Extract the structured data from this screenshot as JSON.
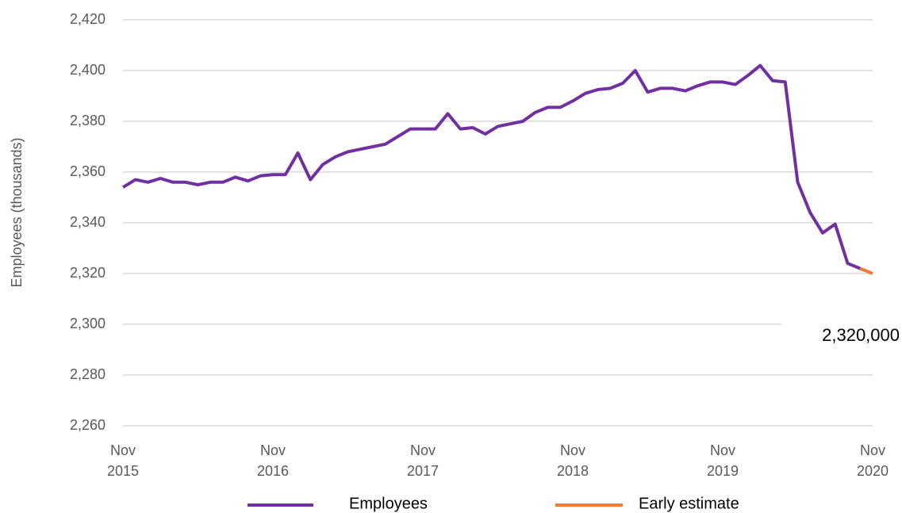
{
  "chart_data": {
    "type": "line",
    "ylabel": "Employees (thousands)",
    "categories": [
      "Nov 2015",
      null,
      null,
      null,
      null,
      null,
      null,
      null,
      null,
      null,
      null,
      null,
      "Nov 2016",
      null,
      null,
      null,
      null,
      null,
      null,
      null,
      null,
      null,
      null,
      null,
      "Nov 2017",
      null,
      null,
      null,
      null,
      null,
      null,
      null,
      null,
      null,
      null,
      null,
      "Nov 2018",
      null,
      null,
      null,
      null,
      null,
      null,
      null,
      null,
      null,
      null,
      null,
      "Nov 2019",
      null,
      null,
      null,
      null,
      null,
      null,
      null,
      null,
      null,
      null,
      null,
      "Nov 2020"
    ],
    "series": [
      {
        "name": "Employees",
        "color": "#7030a0",
        "values": [
          2354,
          2357,
          2356,
          2357.5,
          2356,
          2356,
          2355,
          2356,
          2356,
          2358,
          2356.5,
          2358.5,
          2359,
          2359,
          2367.5,
          2357,
          2363,
          2366,
          2368,
          2369,
          2370,
          2371,
          2374,
          2377,
          2377,
          2377,
          2383,
          2377,
          2377.5,
          2375,
          2378,
          2379,
          2380,
          2383.5,
          2385.5,
          2385.5,
          2388,
          2391,
          2392.5,
          2393,
          2395,
          2400,
          2391.5,
          2393,
          2393,
          2392,
          2394,
          2395.5,
          2395.5,
          2394.5,
          2398,
          2402,
          2396,
          2395.5,
          2356,
          2344,
          2336,
          2339.5,
          2324,
          2322,
          null
        ]
      },
      {
        "name": "Early estimate",
        "color": "#ed7d31",
        "values": [
          null,
          null,
          null,
          null,
          null,
          null,
          null,
          null,
          null,
          null,
          null,
          null,
          null,
          null,
          null,
          null,
          null,
          null,
          null,
          null,
          null,
          null,
          null,
          null,
          null,
          null,
          null,
          null,
          null,
          null,
          null,
          null,
          null,
          null,
          null,
          null,
          null,
          null,
          null,
          null,
          null,
          null,
          null,
          null,
          null,
          null,
          null,
          null,
          null,
          null,
          null,
          null,
          null,
          null,
          null,
          null,
          null,
          null,
          null,
          2322,
          2320
        ],
        "value_labels": [
          null,
          null,
          null,
          null,
          null,
          null,
          null,
          null,
          null,
          null,
          null,
          null,
          null,
          null,
          null,
          null,
          null,
          null,
          null,
          null,
          null,
          null,
          null,
          null,
          null,
          null,
          null,
          null,
          null,
          null,
          null,
          null,
          null,
          null,
          null,
          null,
          null,
          null,
          null,
          null,
          null,
          null,
          null,
          null,
          null,
          null,
          null,
          null,
          null,
          null,
          null,
          null,
          null,
          null,
          null,
          null,
          null,
          null,
          null,
          null,
          "2,320,000"
        ]
      }
    ],
    "ylim": [
      2260,
      2420
    ],
    "yticks": [
      {
        "value": 2260,
        "label": "2,260"
      },
      {
        "value": 2280,
        "label": "2,280"
      },
      {
        "value": 2300,
        "label": "2,300"
      },
      {
        "value": 2320,
        "label": "2,320"
      },
      {
        "value": 2340,
        "label": "2,340"
      },
      {
        "value": 2360,
        "label": "2,360"
      },
      {
        "value": 2380,
        "label": "2,380"
      },
      {
        "value": 2400,
        "label": "2,400"
      },
      {
        "value": 2420,
        "label": "2,420"
      }
    ],
    "grid": true,
    "legend": "bottom"
  }
}
